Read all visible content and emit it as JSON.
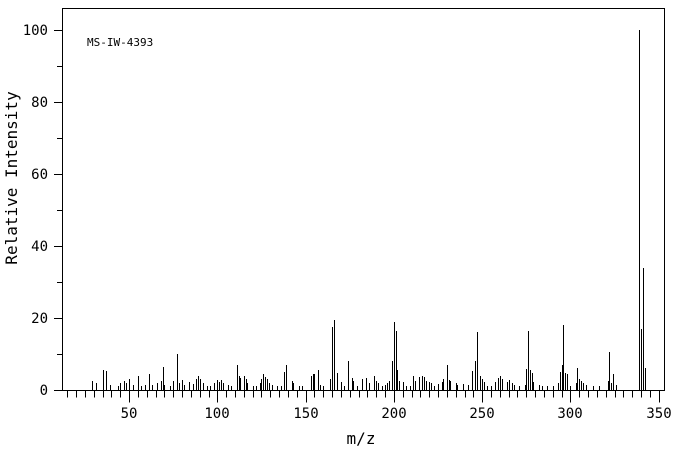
{
  "window": {
    "background_color": "#ffffff",
    "foreground_color": "#000000"
  },
  "chart_data": {
    "type": "bar",
    "chart_kind": "mass-spectrum",
    "annotation": "MS-IW-4393",
    "xlabel": "m/z",
    "ylabel": "Relative Intensity",
    "grid": false,
    "legend": false,
    "series_color": "#000000",
    "x_axis": {
      "min": 12,
      "max": 353,
      "major_ticks": [
        50,
        100,
        150,
        200,
        250,
        300,
        350
      ],
      "minor_tick_step": 5
    },
    "y_axis": {
      "min": 0,
      "max": 100,
      "major_ticks": [
        0,
        20,
        40,
        60,
        80,
        100
      ],
      "minor_tick_step": 10
    },
    "peaks": [
      [
        29,
        2.5
      ],
      [
        31,
        2
      ],
      [
        35,
        5.5
      ],
      [
        37,
        5.3
      ],
      [
        39,
        1.5
      ],
      [
        44,
        1.2
      ],
      [
        45,
        2
      ],
      [
        47,
        2.5
      ],
      [
        48,
        2
      ],
      [
        50,
        3
      ],
      [
        52,
        1.5
      ],
      [
        55,
        4
      ],
      [
        57,
        1.2
      ],
      [
        59,
        1.5
      ],
      [
        61,
        4.5
      ],
      [
        63,
        1.5
      ],
      [
        66,
        2
      ],
      [
        68,
        2.5
      ],
      [
        69,
        6.5
      ],
      [
        70,
        1.5
      ],
      [
        73,
        1.2
      ],
      [
        75,
        2.5
      ],
      [
        77,
        10
      ],
      [
        78,
        2
      ],
      [
        80,
        2.8
      ],
      [
        81,
        1.5
      ],
      [
        84,
        2.2
      ],
      [
        86,
        1.8
      ],
      [
        88,
        3
      ],
      [
        89,
        4
      ],
      [
        90,
        3
      ],
      [
        92,
        2
      ],
      [
        94,
        1
      ],
      [
        96,
        1
      ],
      [
        98,
        2
      ],
      [
        100,
        2.8
      ],
      [
        101,
        2.2
      ],
      [
        102,
        2.8
      ],
      [
        103,
        2
      ],
      [
        106,
        1.3
      ],
      [
        108,
        1
      ],
      [
        111,
        7
      ],
      [
        112,
        4
      ],
      [
        113,
        3.3
      ],
      [
        115,
        4
      ],
      [
        116,
        3
      ],
      [
        117,
        2
      ],
      [
        120,
        1
      ],
      [
        122,
        1
      ],
      [
        124,
        2
      ],
      [
        125,
        3
      ],
      [
        126,
        4.4
      ],
      [
        127,
        3.5
      ],
      [
        128,
        3
      ],
      [
        129,
        2
      ],
      [
        131,
        1.5
      ],
      [
        134,
        1
      ],
      [
        136,
        1
      ],
      [
        138,
        5
      ],
      [
        139,
        7
      ],
      [
        142,
        2.5
      ],
      [
        143,
        2
      ],
      [
        146,
        1.2
      ],
      [
        148,
        1.2
      ],
      [
        153,
        4
      ],
      [
        154,
        4.5
      ],
      [
        155,
        4.5
      ],
      [
        157,
        5.5
      ],
      [
        158,
        1.5
      ],
      [
        160,
        1
      ],
      [
        164,
        3
      ],
      [
        165,
        17.5
      ],
      [
        166,
        19.5
      ],
      [
        168,
        4.8
      ],
      [
        170,
        2.2
      ],
      [
        172,
        1
      ],
      [
        174,
        8
      ],
      [
        176,
        3.3
      ],
      [
        177,
        2.5
      ],
      [
        179,
        1
      ],
      [
        182,
        3
      ],
      [
        184,
        3.4
      ],
      [
        186,
        2
      ],
      [
        189,
        3.8
      ],
      [
        190,
        2.5
      ],
      [
        191,
        2
      ],
      [
        193,
        1
      ],
      [
        195,
        1.5
      ],
      [
        196,
        2
      ],
      [
        197,
        2.5
      ],
      [
        199,
        8
      ],
      [
        200,
        19
      ],
      [
        201,
        16.5
      ],
      [
        202,
        5.5
      ],
      [
        203,
        2.5
      ],
      [
        205,
        2.2
      ],
      [
        207,
        1
      ],
      [
        209,
        1.2
      ],
      [
        211,
        4
      ],
      [
        212,
        2.5
      ],
      [
        214,
        3.5
      ],
      [
        216,
        4
      ],
      [
        217,
        3.5
      ],
      [
        218,
        2.5
      ],
      [
        220,
        2.2
      ],
      [
        221,
        2
      ],
      [
        223,
        1.2
      ],
      [
        225,
        1.8
      ],
      [
        227,
        2.3
      ],
      [
        228,
        3
      ],
      [
        230,
        7
      ],
      [
        231,
        2.7
      ],
      [
        232,
        2.5
      ],
      [
        235,
        2
      ],
      [
        236,
        1.5
      ],
      [
        239,
        1.8
      ],
      [
        242,
        1.5
      ],
      [
        244,
        5.3
      ],
      [
        246,
        8
      ],
      [
        247,
        16
      ],
      [
        249,
        4
      ],
      [
        250,
        3
      ],
      [
        251,
        2.2
      ],
      [
        253,
        1
      ],
      [
        255,
        1.2
      ],
      [
        257,
        2.3
      ],
      [
        259,
        3.4
      ],
      [
        260,
        3.8
      ],
      [
        261,
        3
      ],
      [
        264,
        2.2
      ],
      [
        265,
        2.8
      ],
      [
        267,
        2
      ],
      [
        268,
        1.5
      ],
      [
        271,
        1
      ],
      [
        274,
        1.5
      ],
      [
        275,
        5.8
      ],
      [
        276,
        16.5
      ],
      [
        277,
        5.5
      ],
      [
        278,
        4.8
      ],
      [
        279,
        2.3
      ],
      [
        282,
        1.5
      ],
      [
        284,
        1
      ],
      [
        287,
        1
      ],
      [
        290,
        1.2
      ],
      [
        293,
        2
      ],
      [
        294,
        5
      ],
      [
        295,
        7
      ],
      [
        296,
        18
      ],
      [
        297,
        4.8
      ],
      [
        298,
        4.5
      ],
      [
        300,
        1.2
      ],
      [
        303,
        2
      ],
      [
        304,
        6
      ],
      [
        305,
        3
      ],
      [
        306,
        2.5
      ],
      [
        307,
        2
      ],
      [
        309,
        1.5
      ],
      [
        313,
        1
      ],
      [
        316,
        1
      ],
      [
        321,
        2.5
      ],
      [
        322,
        10.5
      ],
      [
        323,
        2
      ],
      [
        324,
        4.4
      ],
      [
        326,
        1.5
      ],
      [
        339,
        100
      ],
      [
        340,
        17
      ],
      [
        341,
        34
      ],
      [
        342,
        6
      ]
    ]
  }
}
